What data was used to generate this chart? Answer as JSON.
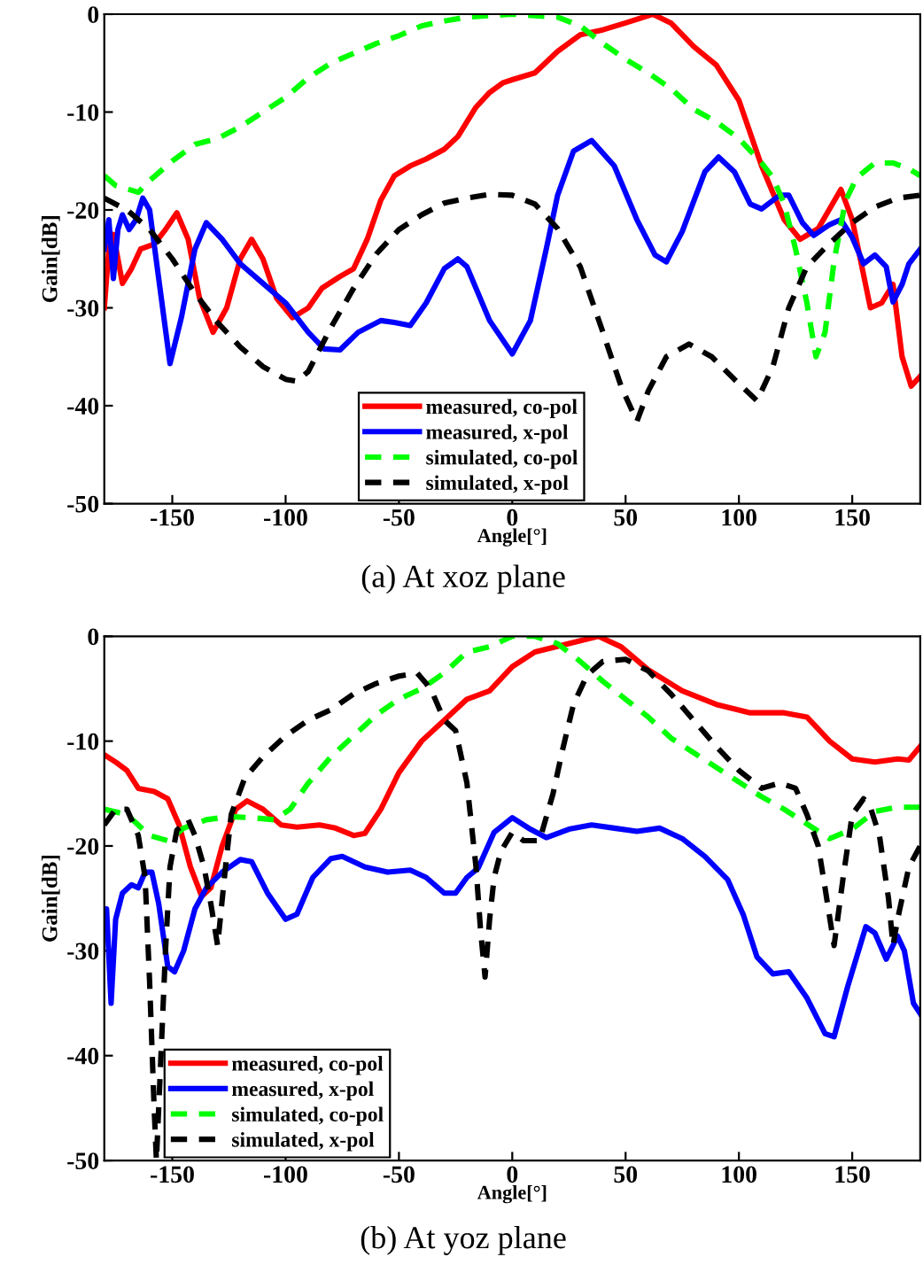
{
  "chart_data": [
    {
      "type": "line",
      "xlabel": "Angle[°]",
      "ylabel": "Gain[dB]",
      "annotations": [
        "(a) At xoz plane"
      ],
      "xlim": [
        -180,
        180
      ],
      "xticks": [
        -150,
        -100,
        -50,
        0,
        50,
        100,
        150
      ],
      "ylim": [
        -50,
        0
      ],
      "yticks": [
        -50,
        -40,
        -30,
        -20,
        -10,
        0
      ],
      "grid": false,
      "legend": "bottom",
      "series": [
        {
          "name": "measured, co-pol",
          "color": "#ff0000",
          "line_style": "solid",
          "x": [
            -180,
            -178,
            -176,
            -172,
            -168,
            -164,
            -158,
            -153,
            -148,
            -143,
            -138,
            -132,
            -126,
            -120,
            -115,
            -110,
            -104,
            -97,
            -90,
            -84,
            -76,
            -70,
            -64,
            -58,
            -52,
            -45,
            -38,
            -30,
            -24,
            -16,
            -10,
            -4,
            0,
            10,
            20,
            30,
            40,
            50,
            62,
            70,
            80,
            90,
            100,
            110,
            120,
            127,
            135,
            145,
            150,
            158,
            163,
            168,
            172,
            176,
            180
          ],
          "values": [
            -30,
            -24,
            -22.5,
            -27.5,
            -26,
            -24,
            -23.5,
            -22,
            -20.3,
            -23,
            -29,
            -32.5,
            -30,
            -25,
            -23,
            -25,
            -29,
            -31,
            -30,
            -28,
            -26.8,
            -26,
            -23,
            -19,
            -16.5,
            -15.5,
            -14.8,
            -13.8,
            -12.5,
            -9.5,
            -8,
            -7,
            -6.7,
            -6,
            -3.8,
            -2.1,
            -1.6,
            -0.9,
            0,
            -0.9,
            -3.3,
            -5.2,
            -8.8,
            -15.5,
            -21,
            -23,
            -21.9,
            -17.9,
            -21,
            -30,
            -29.5,
            -27.6,
            -35,
            -38,
            -37
          ]
        },
        {
          "name": "measured, x-pol",
          "color": "#0000ff",
          "line_style": "solid",
          "x": [
            -180,
            -178,
            -176,
            -174,
            -172,
            -169,
            -166,
            -163,
            -160,
            -156,
            -151,
            -146,
            -140,
            -135,
            -128,
            -120,
            -110,
            -100,
            -90,
            -83,
            -76,
            -68,
            -58,
            -52,
            -45,
            -38,
            -30,
            -24,
            -20,
            -10,
            0,
            8,
            15,
            20,
            27,
            35,
            45,
            55,
            63,
            68,
            75,
            85,
            91,
            98,
            105,
            110,
            118,
            122,
            128,
            133,
            140,
            145,
            150,
            155,
            160,
            165,
            168,
            172,
            175,
            180
          ],
          "values": [
            -24,
            -21,
            -27,
            -22,
            -20.5,
            -22,
            -21,
            -18.8,
            -20,
            -27,
            -35.7,
            -31,
            -24,
            -21.3,
            -23,
            -25.5,
            -27.5,
            -29.5,
            -32.5,
            -34.2,
            -34.3,
            -32.5,
            -31.3,
            -31.5,
            -31.8,
            -29.5,
            -26,
            -25,
            -25.8,
            -31.3,
            -34.7,
            -31.3,
            -24,
            -18.5,
            -14,
            -12.9,
            -15.5,
            -21,
            -24.6,
            -25.3,
            -22.2,
            -16.1,
            -14.6,
            -16.1,
            -19.4,
            -19.9,
            -18.5,
            -18.5,
            -21.3,
            -22.6,
            -21.5,
            -21,
            -22.8,
            -25.5,
            -24.6,
            -25.8,
            -29.4,
            -27.6,
            -25.5,
            -24
          ]
        },
        {
          "name": "simulated, co-pol",
          "color": "#00ff00",
          "line_style": "dashed",
          "x": [
            -180,
            -175,
            -165,
            -160,
            -150,
            -140,
            -130,
            -120,
            -110,
            -100,
            -90,
            -80,
            -70,
            -60,
            -50,
            -40,
            -30,
            -20,
            0,
            20,
            30,
            40,
            50,
            60,
            70,
            80,
            90,
            100,
            110,
            115,
            120,
            125,
            130,
            134,
            138,
            142,
            147,
            152,
            160,
            168,
            175,
            180
          ],
          "values": [
            -16.5,
            -17.5,
            -18.2,
            -17,
            -15,
            -13.3,
            -12.7,
            -11.5,
            -10,
            -8.5,
            -6.5,
            -5,
            -4,
            -3,
            -2.2,
            -1.2,
            -0.7,
            -0.3,
            0,
            -0.3,
            -1.2,
            -3,
            -4.6,
            -6,
            -7.6,
            -9.7,
            -11,
            -12.7,
            -15.2,
            -16.7,
            -19.4,
            -24,
            -29.5,
            -35,
            -32.5,
            -25.2,
            -19.1,
            -16.7,
            -15.2,
            -15.2,
            -15.8,
            -16.5
          ]
        },
        {
          "name": "simulated, x-pol",
          "color": "#000000",
          "line_style": "dashed",
          "x": [
            -180,
            -170,
            -160,
            -150,
            -140,
            -130,
            -120,
            -110,
            -100,
            -95,
            -90,
            -80,
            -70,
            -60,
            -50,
            -40,
            -30,
            -20,
            -10,
            0,
            10,
            20,
            30,
            40,
            48,
            55,
            60,
            68,
            78,
            88,
            98,
            108,
            115,
            122,
            130,
            140,
            150,
            160,
            170,
            180
          ],
          "values": [
            -18.8,
            -20,
            -22,
            -25,
            -28.5,
            -31.5,
            -34,
            -36,
            -37.3,
            -37.5,
            -36.5,
            -32,
            -28,
            -24.5,
            -22,
            -20.5,
            -19.3,
            -18.8,
            -18.4,
            -18.5,
            -19.4,
            -21.9,
            -25.8,
            -32.5,
            -38,
            -41.6,
            -38.5,
            -35,
            -33.7,
            -35,
            -37.3,
            -39.5,
            -36,
            -30,
            -25.8,
            -23.4,
            -21.3,
            -19.7,
            -18.8,
            -18.5
          ]
        }
      ]
    },
    {
      "type": "line",
      "xlabel": "Angle[°]",
      "ylabel": "Gain[dB]",
      "annotations": [
        "(b) At yoz plane"
      ],
      "xlim": [
        -180,
        180
      ],
      "xticks": [
        -150,
        -100,
        -50,
        0,
        50,
        100,
        150
      ],
      "ylim": [
        -50,
        0
      ],
      "yticks": [
        -50,
        -40,
        -30,
        -20,
        -10,
        0
      ],
      "grid": false,
      "legend": "bottom left",
      "series": [
        {
          "name": "measured, co-pol",
          "color": "#ff0000",
          "line_style": "solid",
          "x": [
            -180,
            -175,
            -170,
            -165,
            -158,
            -152,
            -147,
            -142,
            -137,
            -133,
            -128,
            -122,
            -117,
            -110,
            -102,
            -95,
            -85,
            -78,
            -70,
            -65,
            -58,
            -50,
            -40,
            -30,
            -20,
            -10,
            0,
            10,
            25,
            38,
            48,
            60,
            75,
            90,
            105,
            120,
            130,
            140,
            150,
            160,
            170,
            175,
            180
          ],
          "values": [
            -11.3,
            -12,
            -12.8,
            -14.5,
            -14.8,
            -15.5,
            -18,
            -22,
            -24.8,
            -24,
            -20,
            -16.5,
            -15.7,
            -16.5,
            -18,
            -18.2,
            -18,
            -18.3,
            -19,
            -18.8,
            -16.5,
            -13,
            -10,
            -8,
            -6,
            -5.2,
            -2.9,
            -1.5,
            -0.7,
            0,
            -1,
            -3.2,
            -5.2,
            -6.5,
            -7.3,
            -7.3,
            -7.7,
            -10,
            -11.7,
            -12,
            -11.7,
            -11.8,
            -10.5
          ]
        },
        {
          "name": "measured, x-pol",
          "color": "#0000ff",
          "line_style": "solid",
          "x": [
            -180,
            -179,
            -177,
            -175,
            -172,
            -168,
            -165,
            -162,
            -159,
            -156,
            -152,
            -149,
            -145,
            -140,
            -135,
            -128,
            -120,
            -115,
            -108,
            -100,
            -95,
            -88,
            -80,
            -75,
            -65,
            -55,
            -45,
            -38,
            -30,
            -25,
            -20,
            -15,
            -8,
            0,
            8,
            15,
            25,
            35,
            45,
            55,
            65,
            75,
            85,
            95,
            102,
            108,
            115,
            122,
            130,
            138,
            142,
            148,
            156,
            160,
            165,
            170,
            173,
            177,
            180
          ],
          "values": [
            -28,
            -26,
            -35,
            -27,
            -24.5,
            -23.7,
            -24,
            -22.5,
            -22.5,
            -25.5,
            -31.5,
            -32,
            -30,
            -26,
            -24,
            -22.5,
            -21.3,
            -21.5,
            -24.5,
            -27,
            -26.5,
            -23,
            -21.2,
            -21,
            -22,
            -22.5,
            -22.3,
            -23,
            -24.5,
            -24.5,
            -23,
            -22.1,
            -18.7,
            -17.3,
            -18.4,
            -19.2,
            -18.4,
            -18,
            -18.3,
            -18.6,
            -18.3,
            -19.3,
            -21,
            -23.2,
            -26.6,
            -30.6,
            -32.2,
            -32,
            -34.5,
            -37.9,
            -38.2,
            -33.4,
            -27.7,
            -28.3,
            -30.8,
            -28.6,
            -30,
            -35,
            -36
          ]
        },
        {
          "name": "simulated, co-pol",
          "color": "#00ff00",
          "line_style": "dashed",
          "x": [
            -180,
            -170,
            -160,
            -152,
            -145,
            -135,
            -125,
            -115,
            -105,
            -98,
            -90,
            -80,
            -70,
            -60,
            -50,
            -40,
            -30,
            -20,
            -10,
            0,
            10,
            20,
            30,
            40,
            50,
            60,
            70,
            80,
            90,
            100,
            110,
            120,
            130,
            140,
            150,
            160,
            170,
            180
          ],
          "values": [
            -16.5,
            -17,
            -19,
            -19.5,
            -18.3,
            -17.5,
            -17.2,
            -17.3,
            -17.5,
            -16.5,
            -14,
            -11.5,
            -9.5,
            -7.5,
            -6,
            -5,
            -3.5,
            -1.5,
            -1,
            0,
            0,
            -0.7,
            -2.4,
            -4.3,
            -6,
            -7.7,
            -9.7,
            -11.1,
            -12.5,
            -13.9,
            -15.3,
            -16.5,
            -17.9,
            -19.3,
            -18.4,
            -16.7,
            -16.3,
            -16.3
          ]
        },
        {
          "name": "simulated, x-pol",
          "color": "#000000",
          "line_style": "dashed",
          "x": [
            -180,
            -175,
            -170,
            -165,
            -162,
            -160,
            -158,
            -157,
            -155,
            -153,
            -151,
            -148,
            -143,
            -140,
            -136,
            -133,
            -130,
            -127,
            -124,
            -118,
            -110,
            -100,
            -90,
            -80,
            -70,
            -60,
            -50,
            -42,
            -38,
            -35,
            -30,
            -25,
            -20,
            -16,
            -14,
            -12,
            -10,
            -8,
            -5,
            0,
            5,
            12,
            18,
            22,
            27,
            33,
            40,
            50,
            60,
            70,
            80,
            90,
            100,
            110,
            118,
            125,
            130,
            135,
            138,
            142,
            146,
            150,
            155,
            158,
            162,
            166,
            168,
            170,
            175,
            180
          ],
          "values": [
            -18,
            -16.5,
            -16.5,
            -19,
            -23,
            -33,
            -45,
            -50,
            -40,
            -30,
            -22,
            -18.5,
            -17.5,
            -19,
            -22,
            -25.5,
            -29.5,
            -23,
            -17,
            -13.5,
            -11.5,
            -9.5,
            -8,
            -7,
            -5.5,
            -4.5,
            -3.8,
            -3.5,
            -4.5,
            -5.5,
            -8,
            -9,
            -14,
            -22,
            -28,
            -32.5,
            -27,
            -23,
            -20.5,
            -18.7,
            -19.5,
            -19.5,
            -15,
            -11,
            -6.5,
            -3.7,
            -2.4,
            -2.2,
            -3.3,
            -5.5,
            -8,
            -10.5,
            -12.8,
            -14.5,
            -14,
            -14.5,
            -17,
            -20,
            -24,
            -29.5,
            -23,
            -17,
            -15.5,
            -16.3,
            -19,
            -25,
            -29.5,
            -27,
            -22,
            -20
          ]
        }
      ]
    }
  ]
}
